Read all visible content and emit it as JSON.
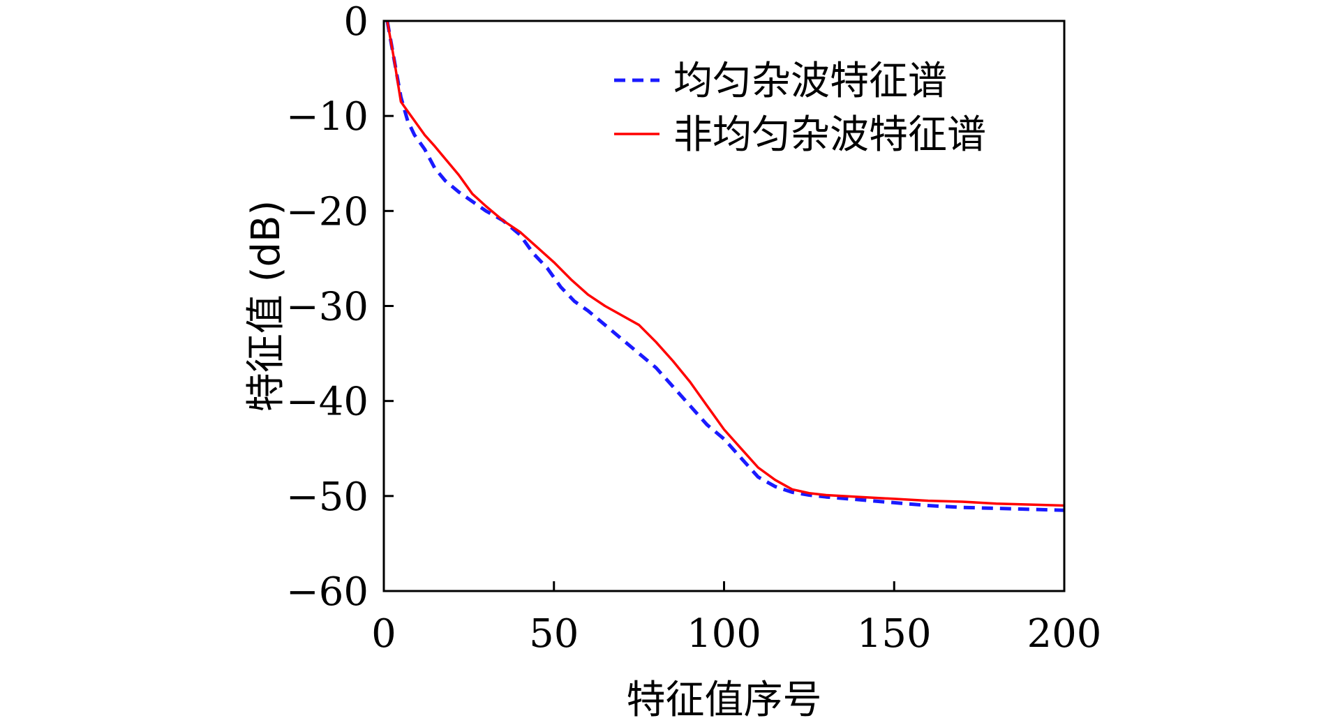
{
  "chart_data": {
    "type": "line",
    "title": "",
    "xlabel": "特征值序号",
    "ylabel": "特征值 (dB)",
    "xlim": [
      0,
      200
    ],
    "ylim": [
      -60,
      0
    ],
    "xticks": [
      0,
      50,
      100,
      150,
      200
    ],
    "yticks": [
      0,
      -10,
      -20,
      -30,
      -40,
      -50,
      -60
    ],
    "x_tick_labels": [
      "0",
      "50",
      "100",
      "150",
      "200"
    ],
    "y_tick_labels": [
      "0",
      "−10",
      "−20",
      "−30",
      "−40",
      "−50",
      "−60"
    ],
    "grid": false,
    "legend_position": "top-right",
    "series": [
      {
        "name": "均匀杂波特征谱",
        "color": "#1a1aff",
        "line_style": "dashed",
        "x": [
          1,
          3,
          5,
          7,
          9,
          12,
          15,
          18,
          22,
          26,
          30,
          35,
          40,
          44,
          48,
          52,
          56,
          60,
          65,
          70,
          75,
          80,
          85,
          90,
          95,
          100,
          105,
          110,
          115,
          120,
          125,
          130,
          140,
          150,
          160,
          170,
          180,
          190,
          200
        ],
        "y": [
          0,
          -4,
          -8,
          -10.5,
          -12,
          -13.5,
          -15.5,
          -16.8,
          -18,
          -19,
          -20,
          -21,
          -22.5,
          -24.5,
          -26,
          -28,
          -29.5,
          -30.5,
          -32,
          -33.5,
          -35,
          -36.5,
          -38.5,
          -40.5,
          -42.5,
          -44,
          -46,
          -48,
          -49,
          -49.6,
          -49.9,
          -50.1,
          -50.4,
          -50.7,
          -51,
          -51.2,
          -51.3,
          -51.4,
          -51.5
        ]
      },
      {
        "name": "非均匀杂波特征谱",
        "color": "#ff0000",
        "line_style": "solid",
        "x": [
          1,
          3,
          5,
          7,
          9,
          12,
          15,
          18,
          22,
          26,
          30,
          35,
          40,
          45,
          50,
          55,
          60,
          65,
          70,
          75,
          80,
          85,
          90,
          95,
          100,
          105,
          110,
          115,
          120,
          125,
          130,
          140,
          150,
          160,
          170,
          180,
          190,
          200
        ],
        "y": [
          0,
          -4,
          -8.5,
          -9.5,
          -10.5,
          -12,
          -13.2,
          -14.5,
          -16.2,
          -18.2,
          -19.5,
          -21,
          -22.2,
          -23.8,
          -25.4,
          -27.2,
          -28.8,
          -30,
          -31,
          -32,
          -33.8,
          -35.8,
          -38,
          -40.5,
          -43,
          -45,
          -47,
          -48.3,
          -49.3,
          -49.7,
          -49.9,
          -50.1,
          -50.3,
          -50.5,
          -50.6,
          -50.8,
          -50.9,
          -51
        ]
      }
    ]
  }
}
